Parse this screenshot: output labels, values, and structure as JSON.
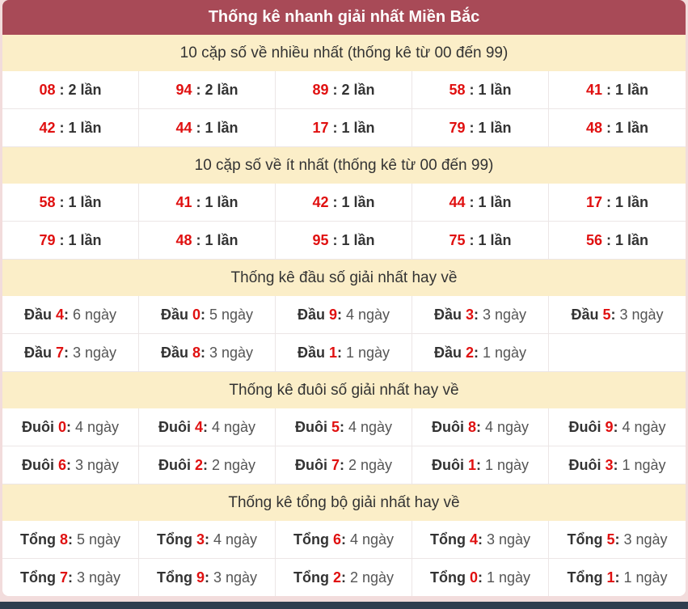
{
  "header": {
    "title": "Thống kê nhanh giải nhất Miền Bắc"
  },
  "colors": {
    "header_bg": "#a84a57",
    "section_bg": "#fbeec8",
    "page_bg": "#f2dcdc",
    "number_red": "#e01010",
    "footer_bg": "#2f3e4f"
  },
  "sections": [
    {
      "id": "most-frequent-pairs",
      "type": "pair",
      "title": "10 cặp số về nhiều nhất (thống kê từ 00 đến 99)",
      "sep": " : ",
      "cells": [
        {
          "num": "08",
          "value": "2 lần"
        },
        {
          "num": "94",
          "value": "2 lần"
        },
        {
          "num": "89",
          "value": "2 lần"
        },
        {
          "num": "58",
          "value": "1 lần"
        },
        {
          "num": "41",
          "value": "1 lần"
        },
        {
          "num": "42",
          "value": "1 lần"
        },
        {
          "num": "44",
          "value": "1 lần"
        },
        {
          "num": "17",
          "value": "1 lần"
        },
        {
          "num": "79",
          "value": "1 lần"
        },
        {
          "num": "48",
          "value": "1 lần"
        }
      ]
    },
    {
      "id": "least-frequent-pairs",
      "type": "pair",
      "title": "10 cặp số về ít nhất (thống kê từ 00 đến 99)",
      "sep": " : ",
      "cells": [
        {
          "num": "58",
          "value": "1 lần"
        },
        {
          "num": "41",
          "value": "1 lần"
        },
        {
          "num": "42",
          "value": "1 lần"
        },
        {
          "num": "44",
          "value": "1 lần"
        },
        {
          "num": "17",
          "value": "1 lần"
        },
        {
          "num": "79",
          "value": "1 lần"
        },
        {
          "num": "48",
          "value": "1 lần"
        },
        {
          "num": "95",
          "value": "1 lần"
        },
        {
          "num": "75",
          "value": "1 lần"
        },
        {
          "num": "56",
          "value": "1 lần"
        }
      ]
    },
    {
      "id": "head-digit-stats",
      "type": "stat",
      "title": "Thống kê đầu số giải nhất hay về",
      "label": "Đầu",
      "colon": ":",
      "cells": [
        {
          "digit": "4",
          "value": "6 ngày"
        },
        {
          "digit": "0",
          "value": "5 ngày"
        },
        {
          "digit": "9",
          "value": "4 ngày"
        },
        {
          "digit": "3",
          "value": "3 ngày"
        },
        {
          "digit": "5",
          "value": "3 ngày"
        },
        {
          "digit": "7",
          "value": "3 ngày"
        },
        {
          "digit": "8",
          "value": "3 ngày"
        },
        {
          "digit": "1",
          "value": "1 ngày"
        },
        {
          "digit": "2",
          "value": "1 ngày"
        }
      ]
    },
    {
      "id": "tail-digit-stats",
      "type": "stat",
      "title": "Thống kê đuôi số giải nhất hay về",
      "label": "Đuôi",
      "colon": ":",
      "cells": [
        {
          "digit": "0",
          "value": "4 ngày"
        },
        {
          "digit": "4",
          "value": "4 ngày"
        },
        {
          "digit": "5",
          "value": "4 ngày"
        },
        {
          "digit": "8",
          "value": "4 ngày"
        },
        {
          "digit": "9",
          "value": "4 ngày"
        },
        {
          "digit": "6",
          "value": "3 ngày"
        },
        {
          "digit": "2",
          "value": "2 ngày"
        },
        {
          "digit": "7",
          "value": "2 ngày"
        },
        {
          "digit": "1",
          "value": "1 ngày"
        },
        {
          "digit": "3",
          "value": "1 ngày"
        }
      ]
    },
    {
      "id": "sum-stats",
      "type": "stat",
      "title": "Thống kê tổng bộ giải nhất hay về",
      "label": "Tổng",
      "colon": ":",
      "cells": [
        {
          "digit": "8",
          "value": "5 ngày"
        },
        {
          "digit": "3",
          "value": "4 ngày"
        },
        {
          "digit": "6",
          "value": "4 ngày"
        },
        {
          "digit": "4",
          "value": "3 ngày"
        },
        {
          "digit": "5",
          "value": "3 ngày"
        },
        {
          "digit": "7",
          "value": "3 ngày"
        },
        {
          "digit": "9",
          "value": "3 ngày"
        },
        {
          "digit": "2",
          "value": "2 ngày"
        },
        {
          "digit": "0",
          "value": "1 ngày"
        },
        {
          "digit": "1",
          "value": "1 ngày"
        }
      ]
    }
  ]
}
